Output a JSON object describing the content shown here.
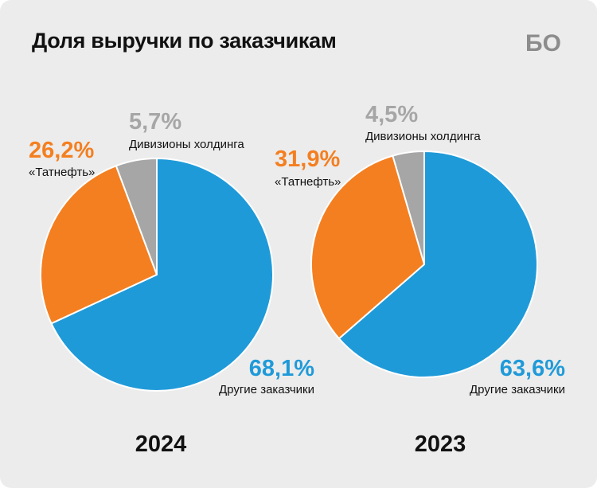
{
  "title": "Доля выручки по заказчикам",
  "logo_text": "БО",
  "colors": {
    "blue": "#1f9ad9",
    "orange": "#f47f20",
    "gray": "#a6a6a6",
    "background": "#ececec"
  },
  "chart_data": [
    {
      "type": "pie",
      "year": "2024",
      "slices": [
        {
          "label": "Другие заказчики",
          "value": 68.1,
          "text": "68,1%",
          "color": "#1f9ad9"
        },
        {
          "label": "«Татнефть»",
          "value": 26.2,
          "text": "26,2%",
          "color": "#f47f20"
        },
        {
          "label": "Дивизионы холдинга",
          "value": 5.7,
          "text": "5,7%",
          "color": "#a6a6a6"
        }
      ]
    },
    {
      "type": "pie",
      "year": "2023",
      "slices": [
        {
          "label": "Другие заказчики",
          "value": 63.6,
          "text": "63,6%",
          "color": "#1f9ad9"
        },
        {
          "label": "«Татнефть»",
          "value": 31.9,
          "text": "31,9%",
          "color": "#f47f20"
        },
        {
          "label": "Дивизионы холдинга",
          "value": 4.5,
          "text": "4,5%",
          "color": "#a6a6a6"
        }
      ]
    }
  ]
}
